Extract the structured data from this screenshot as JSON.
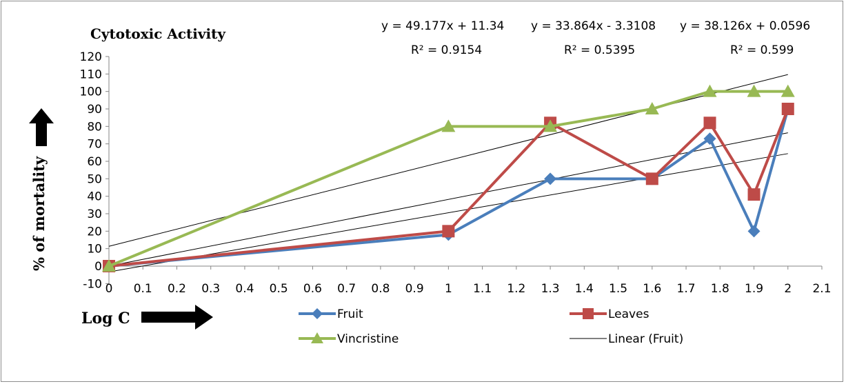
{
  "chart_data": {
    "type": "line",
    "title": "Cytotoxic Activity",
    "xlabel": "Log C",
    "ylabel": "% of mortality",
    "xlim": [
      0,
      2.1
    ],
    "ylim": [
      -10,
      120
    ],
    "x_ticks": [
      "0",
      "0.1",
      "0.2",
      "0.3",
      "0.4",
      "0.5",
      "0.6",
      "0.7",
      "0.8",
      "0.9",
      "1",
      "1.1",
      "1.2",
      "1.3",
      "1.4",
      "1.5",
      "1.6",
      "1.7",
      "1.8",
      "1.9",
      "2",
      "2.1"
    ],
    "y_ticks": [
      "-10",
      "0",
      "10",
      "20",
      "30",
      "40",
      "50",
      "60",
      "70",
      "80",
      "90",
      "100",
      "110",
      "120"
    ],
    "series": [
      {
        "name": "Fruit",
        "color": "#4a7ebb",
        "marker": "diamond",
        "x": [
          0,
          1,
          1.3,
          1.6,
          1.77,
          1.9,
          2
        ],
        "y": [
          0,
          18,
          50,
          50,
          73,
          20,
          90
        ]
      },
      {
        "name": "Leaves",
        "color": "#be4b48",
        "marker": "square",
        "x": [
          0,
          1,
          1.3,
          1.6,
          1.77,
          1.9,
          2
        ],
        "y": [
          0,
          20,
          82,
          50,
          82,
          41,
          90
        ]
      },
      {
        "name": "Vincristine",
        "color": "#98b954",
        "marker": "triangle",
        "x": [
          0,
          1,
          1.3,
          1.6,
          1.77,
          1.9,
          2
        ],
        "y": [
          0,
          80,
          80,
          90,
          100,
          100,
          100
        ]
      }
    ],
    "trendlines": [
      {
        "slope": 49.177,
        "intercept": 11.34,
        "x_range": [
          0,
          2
        ]
      },
      {
        "slope": 33.864,
        "intercept": -3.3108,
        "x_range": [
          0,
          2
        ]
      },
      {
        "slope": 38.126,
        "intercept": 0.0596,
        "x_range": [
          0,
          2
        ]
      }
    ],
    "equations": [
      {
        "equation": "y = 49.177x + 11.34",
        "r2": "R² = 0.9154"
      },
      {
        "equation": "y = 33.864x - 3.3108",
        "r2": "R² = 0.5395"
      },
      {
        "equation": "y = 38.126x + 0.0596",
        "r2": "R² = 0.599"
      }
    ],
    "legend": {
      "placement": "bottom",
      "entries": [
        "Fruit",
        "Leaves",
        "Vincristine",
        "Linear (Fruit)"
      ]
    },
    "grid": false
  }
}
